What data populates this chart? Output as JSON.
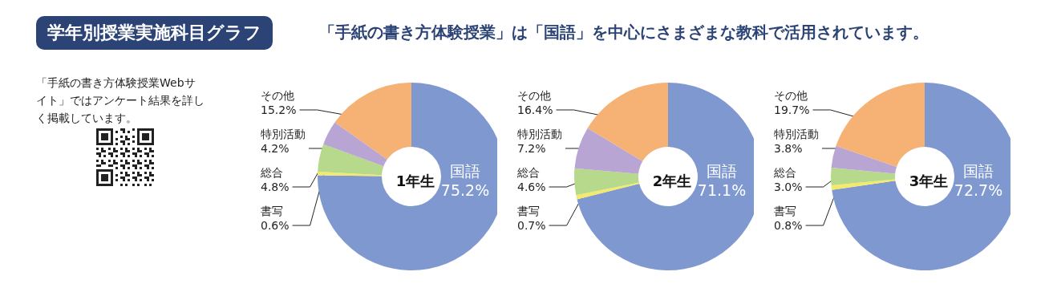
{
  "chart_data": [
    {
      "type": "other",
      "title": "学年別授業実施科目グラフ",
      "subtitle": "「手紙の書き方体験授業」は「国語」を中心にさまざまな教科で活用されています。",
      "annotations": [
        "「手紙の書き方体験授業Webサイト」ではアンケート結果を詳しく掲載しています。"
      ]
    },
    {
      "type": "donut",
      "title": "1年生",
      "categories": [
        "国語",
        "書写",
        "総合",
        "特別活動",
        "その他"
      ],
      "values": [
        75.2,
        0.6,
        4.8,
        4.2,
        15.2
      ],
      "value_labels": [
        "75.2%",
        "0.6%",
        "4.8%",
        "4.2%",
        "15.2%"
      ],
      "colors": [
        "#7f98cf",
        "#f3ea6b",
        "#b7d98b",
        "#b8a5d3",
        "#f6b175"
      ]
    },
    {
      "type": "donut",
      "title": "2年生",
      "categories": [
        "国語",
        "書写",
        "総合",
        "特別活動",
        "その他"
      ],
      "values": [
        71.1,
        0.7,
        4.6,
        7.2,
        16.4
      ],
      "value_labels": [
        "71.1%",
        "0.7%",
        "4.6%",
        "7.2%",
        "16.4%"
      ],
      "colors": [
        "#7f98cf",
        "#f3ea6b",
        "#b7d98b",
        "#b8a5d3",
        "#f6b175"
      ]
    },
    {
      "type": "donut",
      "title": "3年生",
      "categories": [
        "国語",
        "書写",
        "総合",
        "特別活動",
        "その他"
      ],
      "values": [
        72.7,
        0.8,
        3.0,
        3.8,
        19.7
      ],
      "value_labels": [
        "72.7%",
        "0.8%",
        "3.0%",
        "3.8%",
        "19.7%"
      ],
      "colors": [
        "#7f98cf",
        "#f3ea6b",
        "#b7d98b",
        "#b8a5d3",
        "#f6b175"
      ]
    }
  ]
}
